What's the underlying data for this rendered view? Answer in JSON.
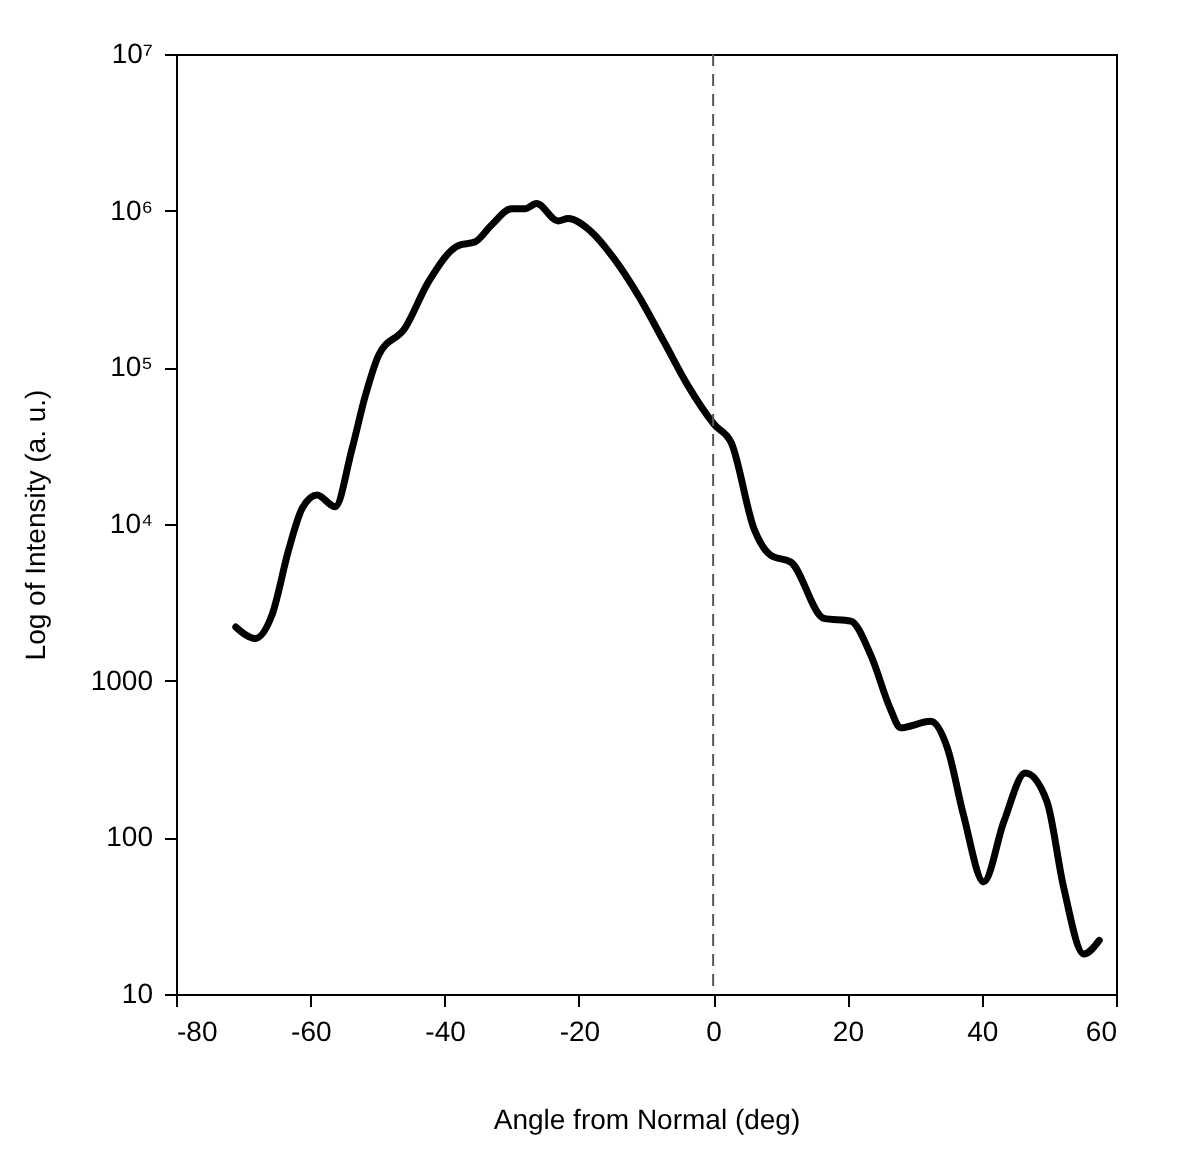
{
  "chart_data": {
    "type": "line",
    "xlabel": "Angle from Normal (deg)",
    "ylabel": "Log of Intensity (a. u.)",
    "log": "y",
    "grid": false,
    "marker": "none",
    "line_style": "solid",
    "xlim": [
      -80,
      60
    ],
    "xticks": [
      -80,
      -60,
      -40,
      -20,
      0,
      20,
      40,
      60
    ],
    "ylim": [
      10,
      10000000
    ],
    "yticks": [
      10,
      100,
      1000,
      {
        "value": 10000,
        "label": "10⁴"
      },
      {
        "value": 100000,
        "label": "10⁵"
      },
      {
        "value": 1000000,
        "label": "10⁶"
      },
      {
        "value": 10000000,
        "label": "10⁷"
      }
    ],
    "ref_lines": [
      {
        "axis": "x",
        "value": 0,
        "line_style": "dashed",
        "color": "#555555"
      }
    ],
    "series": [
      {
        "color": "#000000",
        "x": [
          -71.1,
          -68.2,
          -65.7,
          -63.2,
          -61.2,
          -59.0,
          -56.3,
          -53.8,
          -51.8,
          -49.8,
          -45.9,
          -42.4,
          -37.9,
          -35.5,
          -33.0,
          -30.0,
          -28.0,
          -26.3,
          -23.1,
          -21.6,
          -18.1,
          -14.7,
          -11.2,
          -7.3,
          -3.8,
          0.2,
          2.7,
          6.1,
          8.6,
          11.6,
          16.5,
          20.5,
          23.5,
          26.4,
          27.9,
          32.4,
          34.9,
          37.3,
          40.3,
          43.3,
          46.5,
          49.7,
          52.2,
          55.2,
          57.5
        ],
        "values": [
          2200,
          1860,
          2630,
          6900,
          12600,
          15300,
          12900,
          30000,
          66000,
          120000,
          178000,
          351000,
          600000,
          630000,
          810000,
          1030000,
          1030000,
          1110000,
          860000,
          890000,
          730000,
          490000,
          290000,
          145000,
          77000,
          43000,
          33000,
          9300,
          6300,
          5700,
          2500,
          2400,
          1450,
          660,
          500,
          550,
          370,
          138,
          52,
          126,
          257,
          170,
          48,
          18,
          22
        ]
      }
    ]
  }
}
